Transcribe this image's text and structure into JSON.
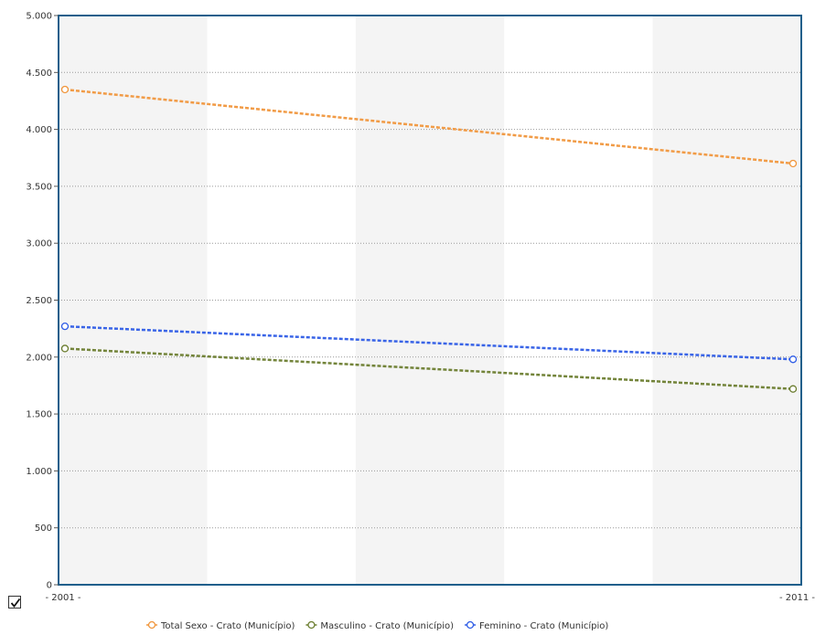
{
  "chart_data": {
    "type": "line",
    "title": "",
    "xlabel": "",
    "ylabel": "",
    "categories": [
      "2001",
      "2011"
    ],
    "x_tick_labels": [
      "- 2001 -",
      "- 2011 -"
    ],
    "y_ticks": [
      0,
      500,
      1000,
      1500,
      2000,
      2500,
      3000,
      3500,
      4000,
      4500,
      5000
    ],
    "y_tick_labels": [
      "0",
      "500",
      "1.000",
      "1.500",
      "2.000",
      "2.500",
      "3.000",
      "3.500",
      "4.000",
      "4.500",
      "5.000"
    ],
    "ylim": [
      0,
      5000
    ],
    "grid": true,
    "legend_position": "bottom",
    "series": [
      {
        "name": "Total Sexo - Crato (Município)",
        "values": [
          4350,
          3700
        ],
        "color": "#f0963c",
        "marker": "circle",
        "line_style": "dashed"
      },
      {
        "name": "Masculino - Crato (Município)",
        "values": [
          2075,
          1720
        ],
        "color": "#6b7d2f",
        "marker": "circle",
        "line_style": "dashed"
      },
      {
        "name": "Feminino - Crato (Município)",
        "values": [
          2270,
          1980
        ],
        "color": "#2e5ce6",
        "marker": "circle",
        "line_style": "dashed"
      }
    ]
  },
  "colors": {
    "frame": "#1f5f8b",
    "band": "#f4f4f4",
    "gridline": "#999999"
  },
  "controls": {
    "checkbox_checked": true
  }
}
